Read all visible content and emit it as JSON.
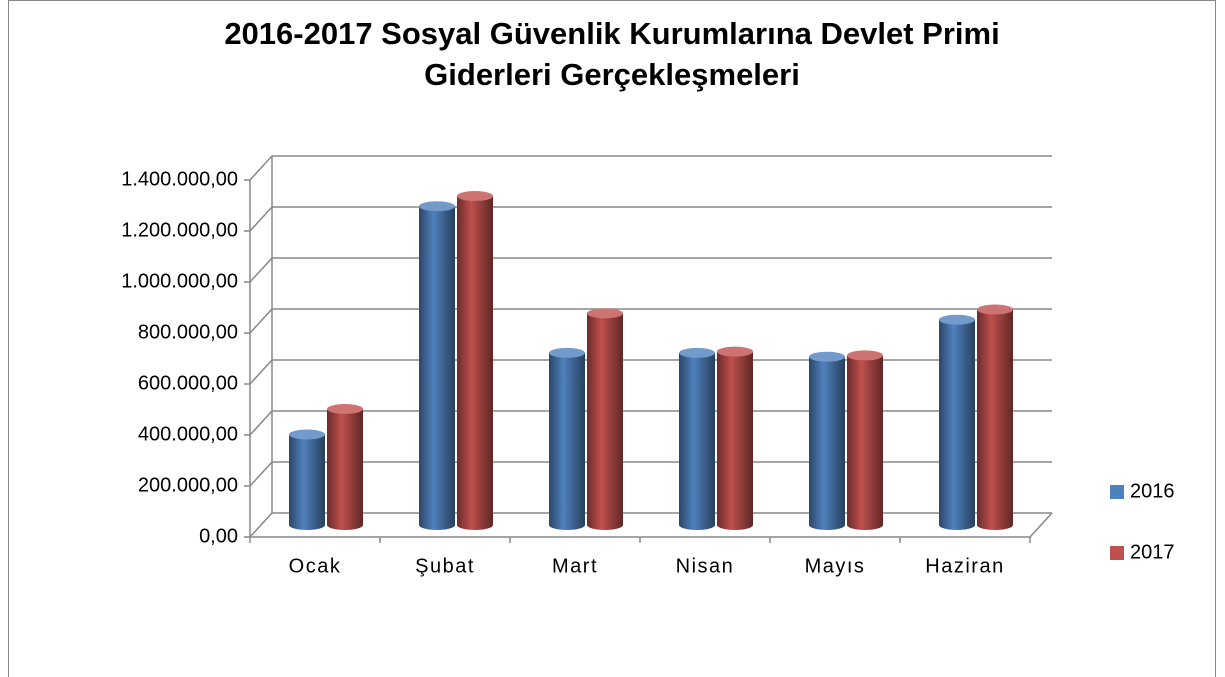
{
  "chart_data": {
    "type": "bar3d",
    "title": [
      "2016-2017 Sosyal Güvenlik Kurumlarına Devlet Primi",
      "Giderleri Gerçekleşmeleri"
    ],
    "categories": [
      "Ocak",
      "Şubat",
      "Mart",
      "Nisan",
      "Mayıs",
      "Haziran"
    ],
    "series": [
      {
        "name": "2016",
        "color": "#4f81bd",
        "values": [
          355000,
          1250000,
          675000,
          675000,
          660000,
          805000
        ]
      },
      {
        "name": "2017",
        "color": "#c0504d",
        "values": [
          455000,
          1290000,
          830000,
          680000,
          665000,
          845000
        ]
      }
    ],
    "ylim": [
      0,
      1400000
    ],
    "yticks": [
      {
        "value": 0,
        "label": "0,00"
      },
      {
        "value": 200000,
        "label": "200.000,00"
      },
      {
        "value": 400000,
        "label": "400.000,00"
      },
      {
        "value": 600000,
        "label": "600.000,00"
      },
      {
        "value": 800000,
        "label": "800.000,00"
      },
      {
        "value": 1000000,
        "label": "1.000.000,00"
      },
      {
        "value": 1200000,
        "label": "1.200.000,00"
      },
      {
        "value": 1400000,
        "label": "1.400.000,00"
      }
    ],
    "grid": true,
    "legend": "right"
  }
}
